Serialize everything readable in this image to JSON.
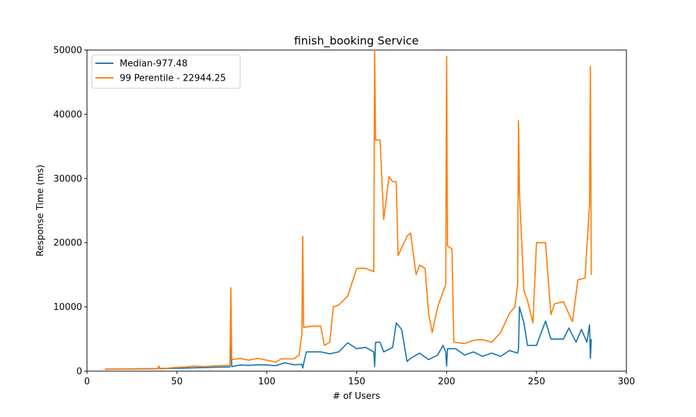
{
  "chart_data": {
    "type": "line",
    "title": "finish_booking Service",
    "xlabel": "# of Users",
    "ylabel": "Response Time (ms)",
    "xlim": [
      0,
      300
    ],
    "ylim": [
      0,
      50000
    ],
    "xticks": [
      0,
      50,
      100,
      150,
      200,
      250,
      300
    ],
    "yticks": [
      0,
      10000,
      20000,
      30000,
      40000,
      50000
    ],
    "grid": false,
    "legend_position": "top-left",
    "series": [
      {
        "name": "Median-977.48",
        "color": "#1f77b4",
        "points": [
          [
            10,
            300
          ],
          [
            20,
            320
          ],
          [
            30,
            350
          ],
          [
            39.5,
            380
          ],
          [
            40,
            600
          ],
          [
            40.5,
            380
          ],
          [
            50,
            430
          ],
          [
            60,
            520
          ],
          [
            70,
            600
          ],
          [
            79.5,
            650
          ],
          [
            80,
            4500
          ],
          [
            80.5,
            700
          ],
          [
            85,
            950
          ],
          [
            90,
            900
          ],
          [
            95,
            980
          ],
          [
            100,
            950
          ],
          [
            105,
            850
          ],
          [
            110,
            1300
          ],
          [
            115,
            1000
          ],
          [
            119.5,
            1050
          ],
          [
            120,
            500
          ],
          [
            120.5,
            1200
          ],
          [
            122,
            3000
          ],
          [
            130,
            3000
          ],
          [
            135,
            2700
          ],
          [
            140,
            3000
          ],
          [
            145,
            4400
          ],
          [
            150,
            3500
          ],
          [
            155,
            3700
          ],
          [
            159.5,
            3000
          ],
          [
            160,
            700
          ],
          [
            160.5,
            4500
          ],
          [
            163,
            4500
          ],
          [
            165,
            3000
          ],
          [
            170,
            3700
          ],
          [
            172,
            7500
          ],
          [
            175,
            6500
          ],
          [
            178,
            1500
          ],
          [
            180,
            2000
          ],
          [
            185,
            2800
          ],
          [
            190,
            1800
          ],
          [
            195,
            2500
          ],
          [
            198,
            4000
          ],
          [
            199.5,
            3000
          ],
          [
            200,
            800
          ],
          [
            200.5,
            3500
          ],
          [
            205,
            3500
          ],
          [
            210,
            2500
          ],
          [
            215,
            3000
          ],
          [
            220,
            2300
          ],
          [
            225,
            2800
          ],
          [
            230,
            2300
          ],
          [
            235,
            3200
          ],
          [
            239.5,
            2800
          ],
          [
            240,
            3500
          ],
          [
            240.5,
            10000
          ],
          [
            243,
            7500
          ],
          [
            245,
            4000
          ],
          [
            250,
            4000
          ],
          [
            255,
            7800
          ],
          [
            258,
            5000
          ],
          [
            265,
            5000
          ],
          [
            268,
            6700
          ],
          [
            272,
            4500
          ],
          [
            275,
            6500
          ],
          [
            278,
            4500
          ],
          [
            279.5,
            7200
          ],
          [
            280,
            2000
          ],
          [
            280.5,
            5000
          ]
        ]
      },
      {
        "name": "99 Perentile - 22944.25",
        "color": "#ff7f0e",
        "points": [
          [
            10,
            300
          ],
          [
            20,
            320
          ],
          [
            30,
            380
          ],
          [
            39.5,
            420
          ],
          [
            40,
            800
          ],
          [
            40.5,
            430
          ],
          [
            45,
            450
          ],
          [
            50,
            600
          ],
          [
            55,
            650
          ],
          [
            60,
            800
          ],
          [
            65,
            700
          ],
          [
            70,
            800
          ],
          [
            79.5,
            900
          ],
          [
            80,
            13000
          ],
          [
            80.5,
            1800
          ],
          [
            85,
            2000
          ],
          [
            90,
            1700
          ],
          [
            95,
            2000
          ],
          [
            100,
            1700
          ],
          [
            105,
            1400
          ],
          [
            108,
            1900
          ],
          [
            115,
            1900
          ],
          [
            118,
            2500
          ],
          [
            119.5,
            5700
          ],
          [
            120,
            21000
          ],
          [
            120.5,
            6800
          ],
          [
            125,
            7000
          ],
          [
            130,
            7000
          ],
          [
            132,
            4000
          ],
          [
            135,
            4500
          ],
          [
            137,
            10000
          ],
          [
            140,
            10300
          ],
          [
            145,
            11700
          ],
          [
            150,
            16000
          ],
          [
            155,
            16000
          ],
          [
            159.5,
            15500
          ],
          [
            160,
            50000
          ],
          [
            160.5,
            36000
          ],
          [
            163,
            36000
          ],
          [
            165,
            23600
          ],
          [
            168,
            30300
          ],
          [
            170,
            29500
          ],
          [
            172,
            29500
          ],
          [
            173,
            18000
          ],
          [
            178,
            21000
          ],
          [
            180,
            21500
          ],
          [
            183,
            15000
          ],
          [
            185,
            16500
          ],
          [
            188,
            16000
          ],
          [
            190,
            9000
          ],
          [
            192,
            6000
          ],
          [
            195,
            10000
          ],
          [
            199.5,
            13500
          ],
          [
            200,
            49000
          ],
          [
            200.5,
            19500
          ],
          [
            203,
            19000
          ],
          [
            204,
            4500
          ],
          [
            210,
            4300
          ],
          [
            215,
            4800
          ],
          [
            220,
            4900
          ],
          [
            225,
            4500
          ],
          [
            230,
            6000
          ],
          [
            235,
            9000
          ],
          [
            238,
            10000
          ],
          [
            239.5,
            13500
          ],
          [
            240,
            39000
          ],
          [
            240.5,
            27800
          ],
          [
            243,
            12500
          ],
          [
            245,
            11000
          ],
          [
            248,
            7500
          ],
          [
            250,
            20000
          ],
          [
            255,
            20000
          ],
          [
            258,
            8800
          ],
          [
            260,
            10500
          ],
          [
            265,
            10800
          ],
          [
            270,
            7700
          ],
          [
            273,
            14200
          ],
          [
            277,
            14500
          ],
          [
            279.5,
            26000
          ],
          [
            280,
            47500
          ],
          [
            280.5,
            15000
          ]
        ]
      }
    ]
  }
}
